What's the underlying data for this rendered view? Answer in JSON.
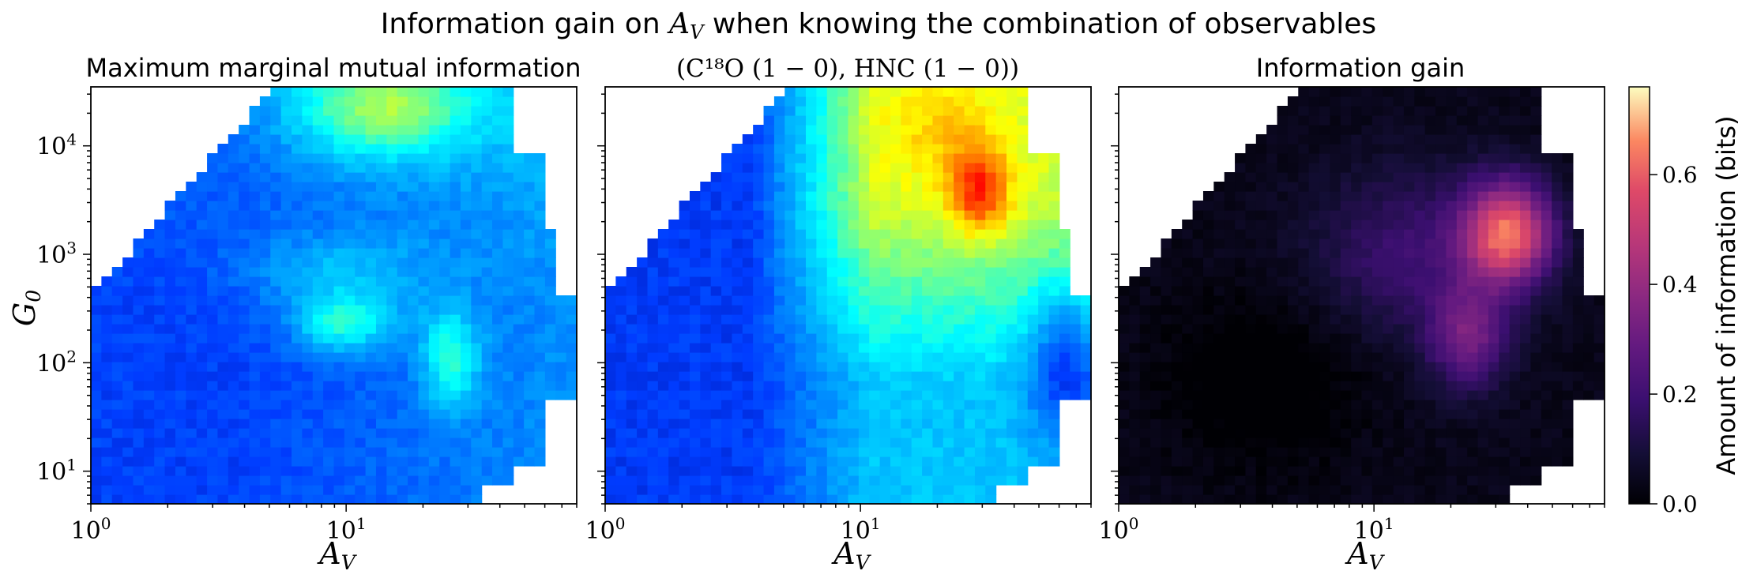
{
  "suptitle": {
    "prefix": "Information gain on ",
    "var_main": "A",
    "var_sub": "V",
    "suffix": " when knowing the combination of observables"
  },
  "panel_titles": {
    "left": "Maximum marginal mutual information",
    "center": "(C¹⁸O (1 − 0), HNC (1 − 0))",
    "right": "Information gain"
  },
  "axis_labels": {
    "x_main": "A",
    "x_sub": "V",
    "y_main": "G",
    "y_sub": "0"
  },
  "colorbar": {
    "label": "Amount of information (bits)",
    "ticks": [
      "0.0",
      "0.2",
      "0.4",
      "0.6"
    ],
    "range": [
      0.0,
      0.76
    ]
  },
  "chart_data": [
    {
      "type": "heatmap",
      "title": "Maximum marginal mutual information",
      "colormap": "jet",
      "x_scale": "log",
      "y_scale": "log",
      "xlim": [
        1,
        80
      ],
      "ylim": [
        5,
        35000
      ],
      "x_ticks": [
        "10^0",
        "10^1"
      ],
      "y_ticks": [
        "10^1",
        "10^2",
        "10^3",
        "10^4"
      ],
      "xlabel": "A_V",
      "ylabel": "G_0",
      "features": [
        {
          "Av": 11,
          "G0": 300,
          "value": 0.4
        },
        {
          "Av": 26,
          "G0": 180,
          "value": 0.42
        },
        {
          "Av": 9,
          "G0": 20000,
          "value": 0.58
        },
        {
          "Av": 25,
          "G0": 30000,
          "value": 0.66
        }
      ]
    },
    {
      "type": "heatmap",
      "title": "(C¹⁸O (1 − 0), HNC (1 − 0))",
      "colormap": "jet",
      "x_scale": "log",
      "y_scale": "log",
      "xlim": [
        1,
        80
      ],
      "ylim": [
        5,
        35000
      ],
      "x_ticks": [
        "10^0",
        "10^1"
      ],
      "xlabel": "A_V",
      "features": [
        {
          "Av": 28,
          "G0": 6000,
          "value": 0.85
        },
        {
          "Av": 12,
          "G0": 20000,
          "value": 0.62
        },
        {
          "Av": 25,
          "G0": 300,
          "value": 0.55
        }
      ]
    },
    {
      "type": "heatmap",
      "title": "Information gain",
      "colormap": "magma",
      "x_scale": "log",
      "y_scale": "log",
      "xlim": [
        1,
        80
      ],
      "ylim": [
        5,
        35000
      ],
      "x_ticks": [
        "10^0",
        "10^1"
      ],
      "xlabel": "A_V",
      "value_range": [
        0.0,
        0.76
      ],
      "features": [
        {
          "Av": 35,
          "G0": 1800,
          "value": 0.72
        },
        {
          "Av": 26,
          "G0": 250,
          "value": 0.4
        }
      ]
    }
  ]
}
